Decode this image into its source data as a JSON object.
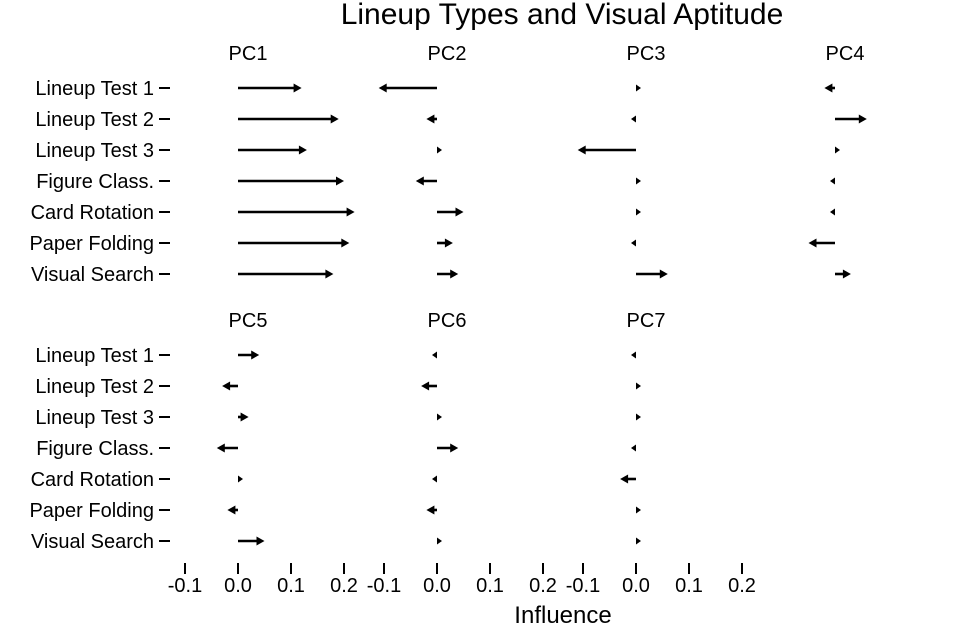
{
  "chart_data": {
    "type": "arrow",
    "title": "Lineup Types and Visual Aptitude",
    "xlabel": "Influence",
    "xlim": [
      -0.1,
      0.2
    ],
    "x_ticks": [
      "-0.1",
      "0.0",
      "0.1",
      "0.2"
    ],
    "grid": false,
    "variables": [
      "Lineup Test 1",
      "Lineup Test 2",
      "Lineup Test 3",
      "Figure Class.",
      "Card Rotation",
      "Paper Folding",
      "Visual Search"
    ],
    "panels": [
      {
        "name": "PC1",
        "values": [
          0.12,
          0.19,
          0.13,
          0.2,
          0.22,
          0.21,
          0.18
        ]
      },
      {
        "name": "PC2",
        "values": [
          -0.11,
          -0.02,
          0.01,
          -0.04,
          0.05,
          0.03,
          0.04
        ]
      },
      {
        "name": "PC3",
        "values": [
          0.002,
          -0.005,
          -0.11,
          0.01,
          0.005,
          -0.005,
          0.06
        ]
      },
      {
        "name": "PC4",
        "values": [
          -0.02,
          0.06,
          0.01,
          -0.01,
          -0.01,
          -0.05,
          0.03
        ]
      },
      {
        "name": "PC5",
        "values": [
          0.04,
          -0.03,
          0.02,
          -0.04,
          0.01,
          -0.02,
          0.05
        ]
      },
      {
        "name": "PC6",
        "values": [
          -0.01,
          -0.03,
          0.01,
          0.04,
          -0.01,
          -0.02,
          0.01
        ]
      },
      {
        "name": "PC7",
        "values": [
          -0.005,
          0.003,
          0.003,
          -0.005,
          -0.03,
          0.01,
          0.005
        ]
      }
    ]
  }
}
